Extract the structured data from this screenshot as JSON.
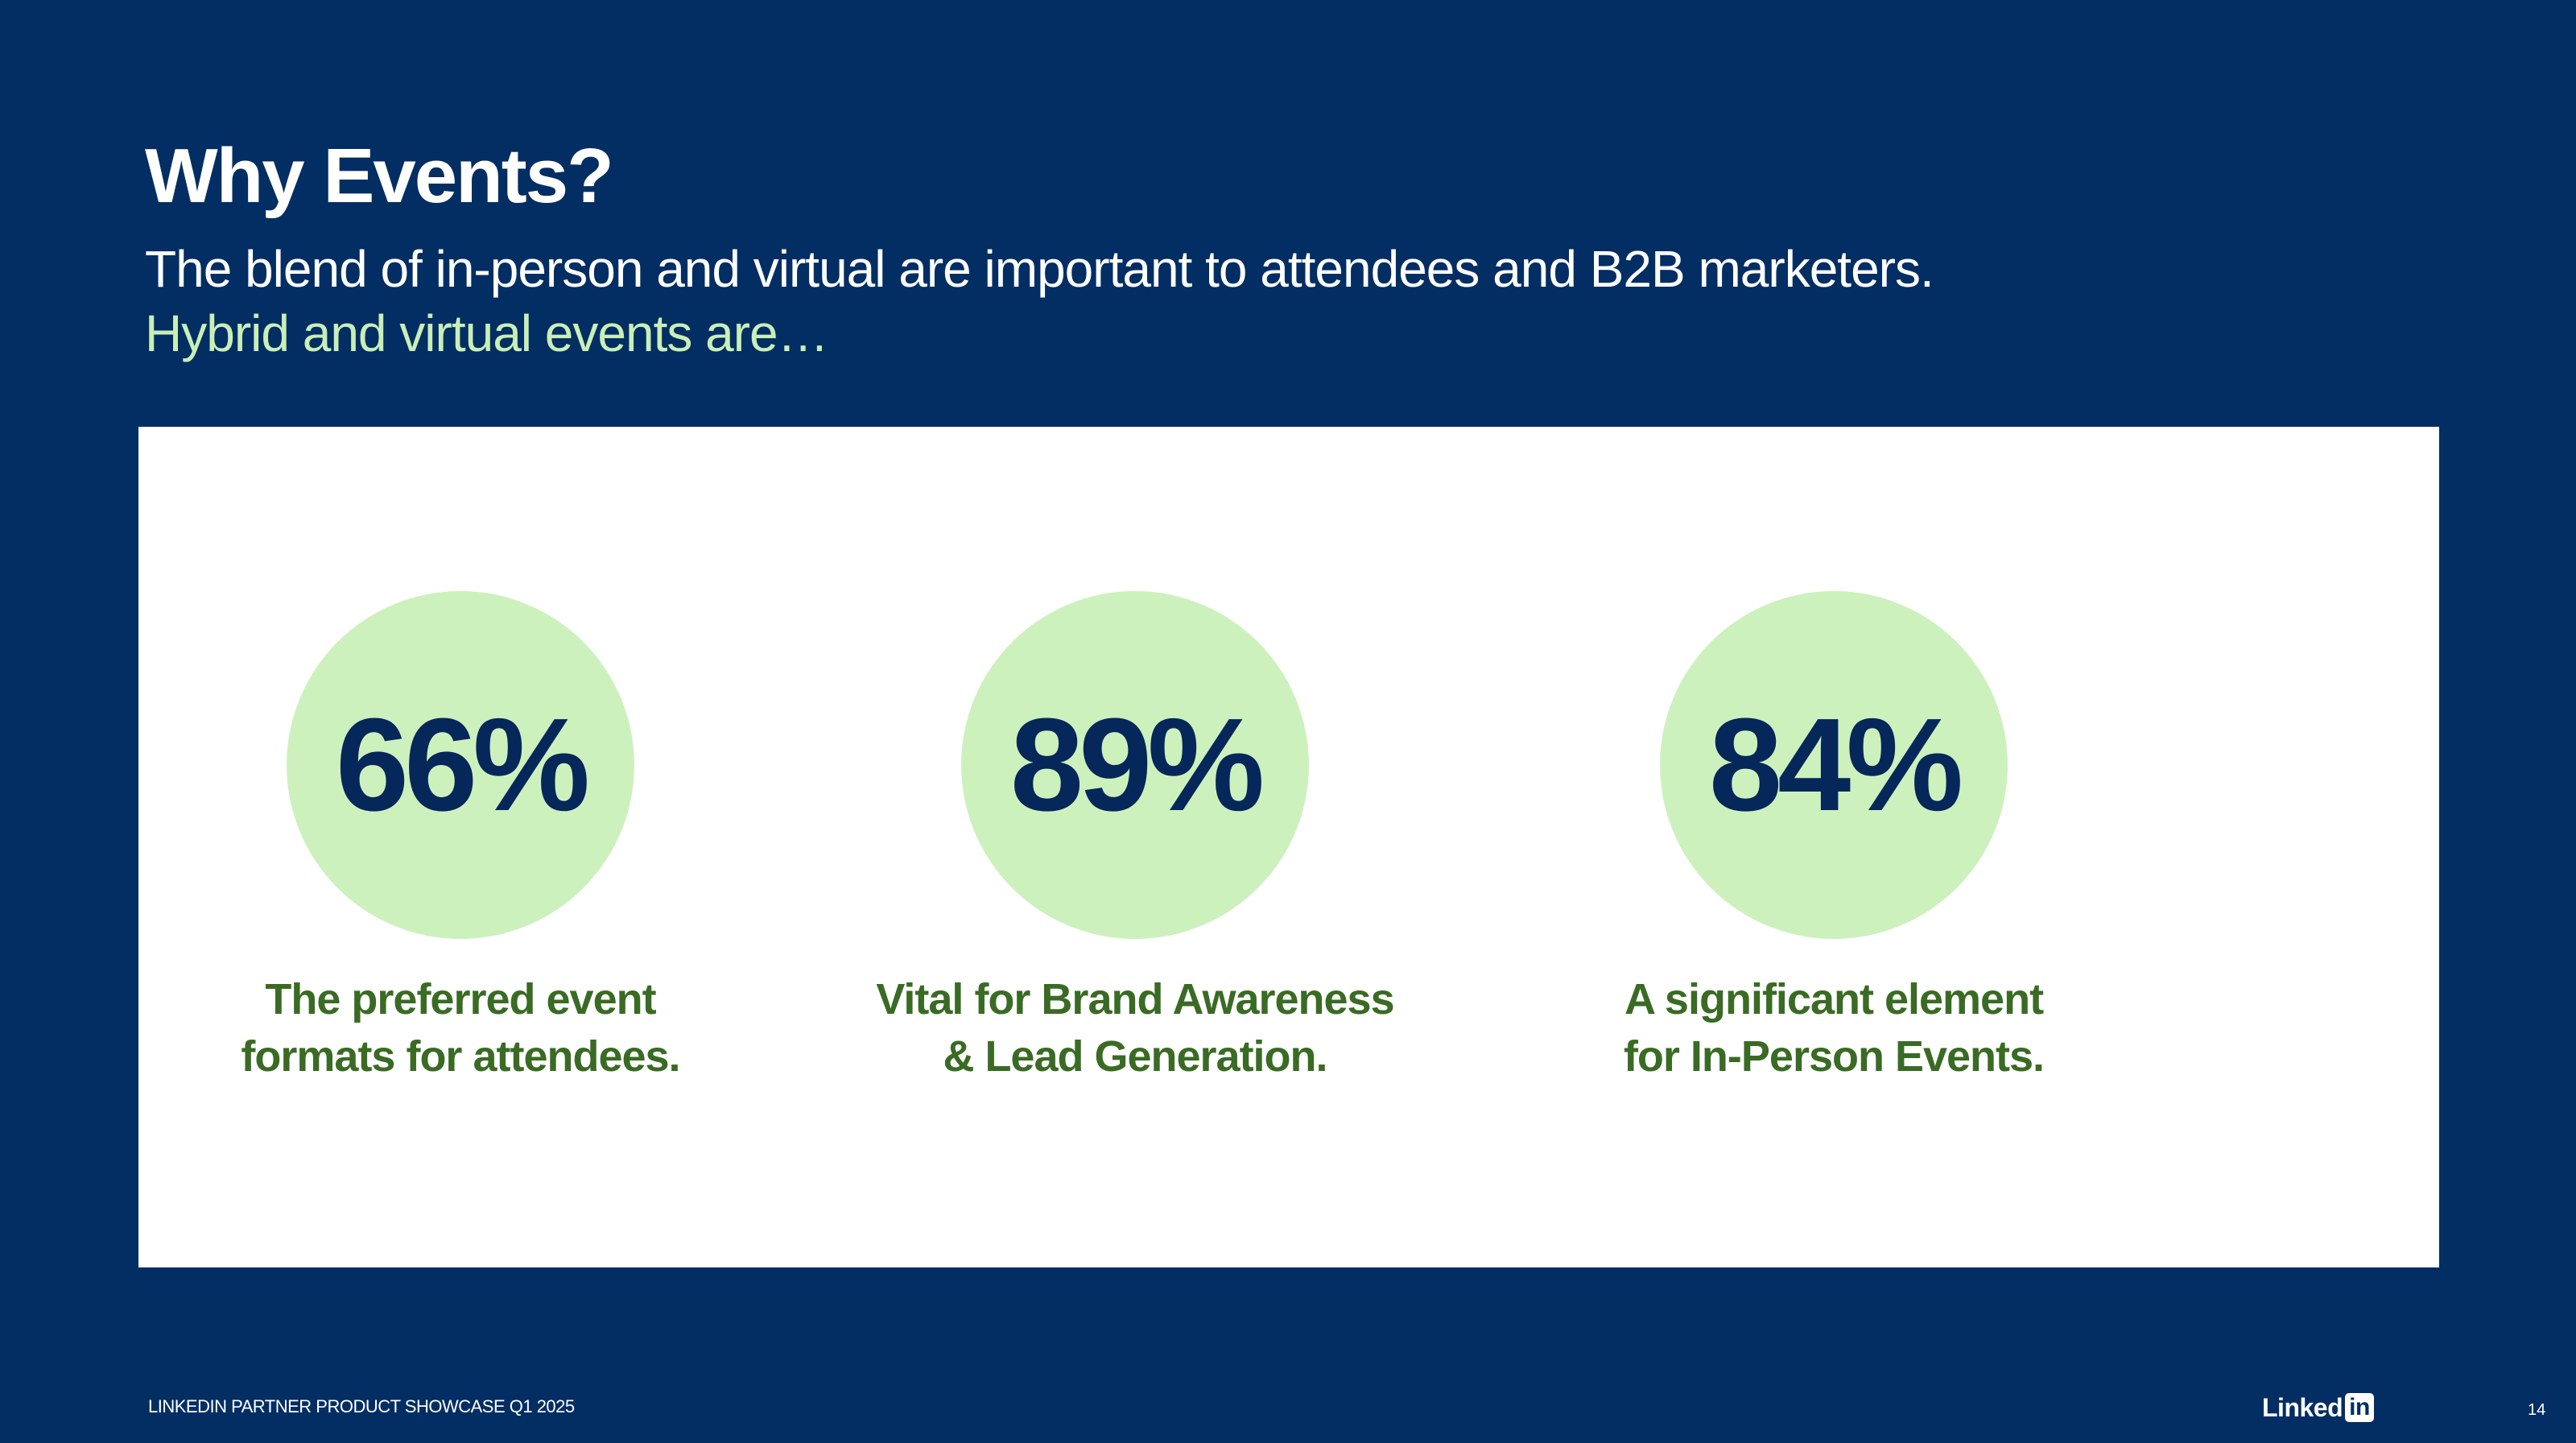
{
  "slide": {
    "title": "Why Events?",
    "subtitle": "The blend of in-person and virtual are important to attendees and B2B marketers.",
    "subtitle_accent": "Hybrid and virtual events are…"
  },
  "stats": [
    {
      "value": "66%",
      "caption_lines": [
        "The preferred event",
        "formats for attendees."
      ]
    },
    {
      "value": "89%",
      "caption_lines": [
        "Vital for Brand Awareness",
        "& Lead Generation."
      ]
    },
    {
      "value": "84%",
      "caption_lines": [
        "A significant element",
        "for In-Person Events."
      ]
    }
  ],
  "footer": {
    "left_text": "LINKEDIN PARTNER PRODUCT SHOWCASE Q1 2025",
    "logo_word": "Linked",
    "logo_box": "in",
    "page_number": "14"
  },
  "colors": {
    "background": "#032e63",
    "accent_green_text": "#c9efb7",
    "circle_fill": "#cdf1bd",
    "stat_value": "#06275a",
    "caption_green": "#3a6b24",
    "panel": "#ffffff"
  }
}
